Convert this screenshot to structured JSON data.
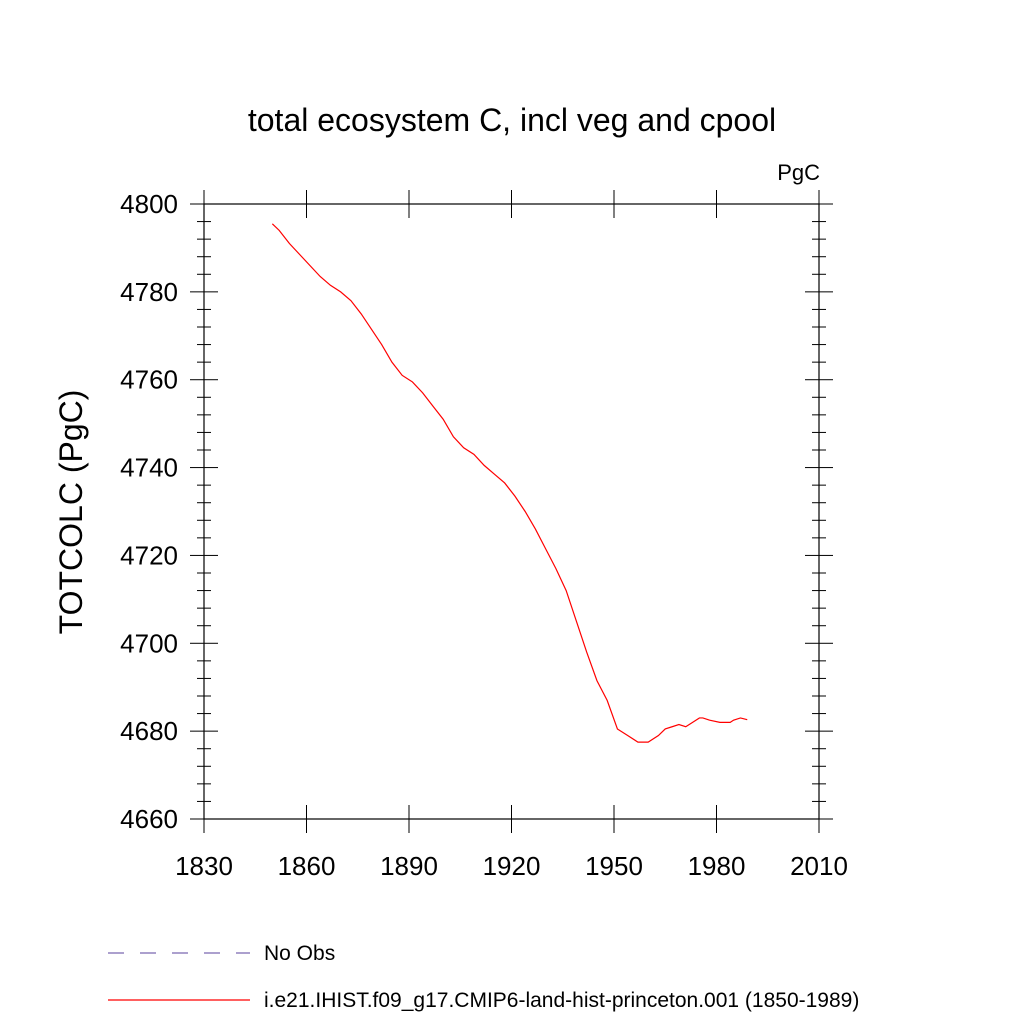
{
  "chart_data": {
    "type": "line",
    "title": "total ecosystem C, incl veg and cpool",
    "units_label": "PgC",
    "ylabel": "TOTCOLC  (PgC)",
    "xlabel": "",
    "xlim": [
      1830,
      2010
    ],
    "ylim": [
      4660,
      4800
    ],
    "x_ticks": [
      1830,
      1860,
      1890,
      1920,
      1950,
      1980,
      2010
    ],
    "y_ticks": [
      4660,
      4680,
      4700,
      4720,
      4740,
      4760,
      4780,
      4800
    ],
    "grid": false,
    "legend_position": "bottom",
    "series": [
      {
        "name": "No Obs",
        "color": "#7b68b0",
        "style": "dashed",
        "x": [],
        "y": []
      },
      {
        "name": "i.e21.IHIST.f09_g17.CMIP6-land-hist-princeton.001 (1850-1989)",
        "color": "#ff0000",
        "style": "solid",
        "x": [
          1850,
          1852,
          1855,
          1858,
          1861,
          1864,
          1867,
          1870,
          1873,
          1876,
          1879,
          1882,
          1885,
          1888,
          1891,
          1894,
          1897,
          1900,
          1903,
          1906,
          1909,
          1912,
          1915,
          1918,
          1921,
          1924,
          1927,
          1930,
          1933,
          1936,
          1939,
          1942,
          1945,
          1948,
          1951,
          1954,
          1957,
          1960,
          1963,
          1965,
          1967,
          1969,
          1971,
          1973,
          1975,
          1976,
          1978,
          1981,
          1984,
          1985,
          1987,
          1988,
          1989
        ],
        "y": [
          4795.5,
          4794,
          4791,
          4788.5,
          4786,
          4783.5,
          4781.5,
          4780,
          4778,
          4775,
          4771.5,
          4768,
          4764,
          4761,
          4759.5,
          4757,
          4754,
          4751,
          4747,
          4744.5,
          4743,
          4740.5,
          4738.5,
          4736.5,
          4733.5,
          4730,
          4726,
          4721.5,
          4717,
          4712,
          4705,
          4698,
          4691.5,
          4687,
          4680.5,
          4679,
          4677.5,
          4677.5,
          4679,
          4680.5,
          4681,
          4681.5,
          4681,
          4682,
          4683,
          4683,
          4682.5,
          4682,
          4682,
          4682.5,
          4683,
          4682.8,
          4682.6
        ]
      }
    ]
  }
}
